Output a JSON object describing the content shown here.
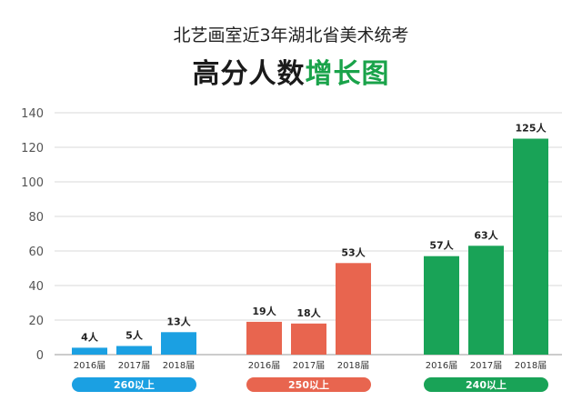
{
  "title_line1": "北艺画室近3年湖北省美术统考",
  "title_line2_main": "高分人数",
  "title_line2_accent": "增长图",
  "colors": {
    "blue": "#1ba0e2",
    "red": "#e8654f",
    "green": "#19a357",
    "grid": "#d9d9d9",
    "accent_text": "#1aa34a"
  },
  "chart_data": {
    "type": "bar",
    "ylim": [
      0,
      140
    ],
    "yticks": [
      0,
      20,
      40,
      60,
      80,
      100,
      120,
      140
    ],
    "grid": true,
    "groups": [
      {
        "name": "260以上",
        "color": "#1ba0e2",
        "categories": [
          "2016届",
          "2017届",
          "2018届"
        ],
        "values": [
          4,
          5,
          13
        ],
        "labels": [
          "4人",
          "5人",
          "13人"
        ]
      },
      {
        "name": "250以上",
        "color": "#e8654f",
        "categories": [
          "2016届",
          "2017届",
          "2018届"
        ],
        "values": [
          19,
          18,
          53
        ],
        "labels": [
          "19人",
          "18人",
          "53人"
        ]
      },
      {
        "name": "240以上",
        "color": "#19a357",
        "categories": [
          "2016届",
          "2017届",
          "2018届"
        ],
        "values": [
          57,
          63,
          125
        ],
        "labels": [
          "57人",
          "63人",
          "125人"
        ]
      }
    ]
  }
}
